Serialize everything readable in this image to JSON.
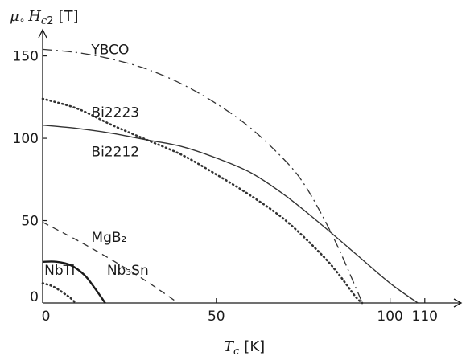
{
  "chart_data": {
    "type": "line",
    "xlabel": "T_c [K]",
    "ylabel": "μ∘ H_c2 [T]",
    "xlim": [
      0,
      117
    ],
    "ylim": [
      0,
      162
    ],
    "x_ticks": [
      0,
      50,
      100,
      110
    ],
    "y_ticks": [
      0,
      50,
      100,
      150
    ],
    "grid": false,
    "legend": "none",
    "series": [
      {
        "name": "YBCO",
        "style": "dashdot",
        "color": "#333333",
        "x": [
          0,
          10,
          20,
          30,
          40,
          50,
          60,
          70,
          75,
          80,
          85,
          90,
          92
        ],
        "y": [
          154,
          152,
          148,
          142,
          133,
          121,
          106,
          86,
          73,
          55,
          34,
          10,
          0
        ]
      },
      {
        "name": "Bi2223",
        "style": "dotted",
        "color": "#333333",
        "x": [
          0,
          10,
          20,
          30,
          40,
          50,
          60,
          70,
          80,
          85,
          90,
          92
        ],
        "y": [
          124,
          118,
          108,
          99,
          90,
          78,
          65,
          50,
          30,
          18,
          4,
          0
        ]
      },
      {
        "name": "Bi2212",
        "style": "solid",
        "color": "#333333",
        "x": [
          0,
          10,
          20,
          30,
          40,
          50,
          60,
          70,
          80,
          90,
          100,
          108
        ],
        "y": [
          108,
          106,
          103,
          99,
          95,
          88,
          79,
          65,
          48,
          30,
          12,
          0
        ]
      },
      {
        "name": "MgB₂",
        "style": "dashed",
        "color": "#333333",
        "x": [
          0,
          10,
          20,
          30,
          39
        ],
        "y": [
          49,
          38,
          26,
          13,
          0
        ]
      },
      {
        "name": "Nb₃Sn",
        "style": "solid-thick",
        "color": "#1a1a1a",
        "x": [
          0,
          4,
          8,
          12,
          15,
          18
        ],
        "y": [
          25,
          25,
          23,
          17,
          9,
          0
        ]
      },
      {
        "name": "NbTi",
        "style": "dotted",
        "color": "#333333",
        "x": [
          0,
          3,
          6,
          8,
          9.5
        ],
        "y": [
          12,
          10,
          6,
          3,
          0
        ]
      }
    ],
    "label_positions": [
      {
        "series": 0,
        "x": 14,
        "y": 154
      },
      {
        "series": 1,
        "x": 14,
        "y": 116
      },
      {
        "series": 2,
        "x": 14,
        "y": 92
      },
      {
        "series": 3,
        "x": 14,
        "y": 40
      },
      {
        "series": 4,
        "x": 18.5,
        "y": 20
      },
      {
        "series": 5,
        "x": 0.5,
        "y": 20
      }
    ]
  }
}
